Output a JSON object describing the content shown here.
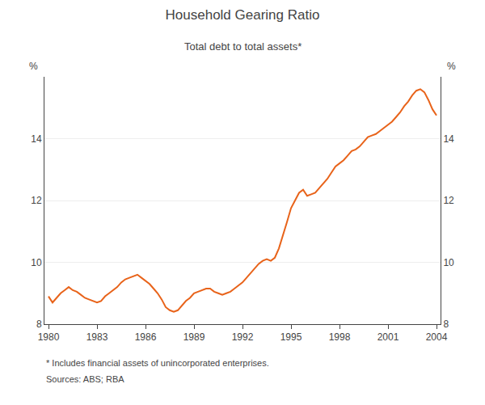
{
  "chart_data": {
    "type": "line",
    "title": "Household Gearing Ratio",
    "subtitle": "Total debt to total assets*",
    "ylabel": "%",
    "y2label": "%",
    "annotations": [
      "* Includes financial assets of unincorporated enterprises.",
      "Sources: ABS; RBA"
    ],
    "color": "#E8631A",
    "grid": true,
    "xlim": [
      1979.75,
      2004.25
    ],
    "xticks": [
      1980,
      1983,
      1986,
      1989,
      1992,
      1995,
      1998,
      2001,
      2004
    ],
    "ylim": [
      8,
      16
    ],
    "yticks": [
      8,
      10,
      12,
      14
    ],
    "y2lim": [
      8,
      16
    ],
    "y2ticks": [
      8,
      10,
      12,
      14
    ],
    "x": [
      1980.0,
      1980.25,
      1980.5,
      1980.75,
      1981.0,
      1981.25,
      1981.5,
      1981.75,
      1982.0,
      1982.25,
      1982.5,
      1982.75,
      1983.0,
      1983.25,
      1983.5,
      1983.75,
      1984.0,
      1984.25,
      1984.5,
      1984.75,
      1985.0,
      1985.25,
      1985.5,
      1985.75,
      1986.0,
      1986.25,
      1986.5,
      1986.75,
      1987.0,
      1987.25,
      1987.5,
      1987.75,
      1988.0,
      1988.25,
      1988.5,
      1988.75,
      1989.0,
      1989.25,
      1989.5,
      1989.75,
      1990.0,
      1990.25,
      1990.5,
      1990.75,
      1991.0,
      1991.25,
      1991.5,
      1991.75,
      1992.0,
      1992.25,
      1992.5,
      1992.75,
      1993.0,
      1993.25,
      1993.5,
      1993.75,
      1994.0,
      1994.25,
      1994.5,
      1994.75,
      1995.0,
      1995.25,
      1995.5,
      1995.75,
      1996.0,
      1996.25,
      1996.5,
      1996.75,
      1997.0,
      1997.25,
      1997.5,
      1997.75,
      1998.0,
      1998.25,
      1998.5,
      1998.75,
      1999.0,
      1999.25,
      1999.5,
      1999.75,
      2000.0,
      2000.25,
      2000.5,
      2000.75,
      2001.0,
      2001.25,
      2001.5,
      2001.75,
      2002.0,
      2002.25,
      2002.5,
      2002.75,
      2003.0,
      2003.25,
      2003.5,
      2003.75,
      2004.0
    ],
    "values": [
      8.9,
      8.7,
      8.85,
      9.0,
      9.1,
      9.2,
      9.1,
      9.05,
      8.95,
      8.85,
      8.8,
      8.75,
      8.7,
      8.75,
      8.9,
      9.0,
      9.1,
      9.2,
      9.35,
      9.45,
      9.5,
      9.55,
      9.6,
      9.5,
      9.4,
      9.3,
      9.15,
      9.0,
      8.8,
      8.55,
      8.45,
      8.4,
      8.45,
      8.6,
      8.75,
      8.85,
      9.0,
      9.05,
      9.1,
      9.15,
      9.15,
      9.05,
      9.0,
      8.95,
      9.0,
      9.05,
      9.15,
      9.25,
      9.35,
      9.5,
      9.65,
      9.8,
      9.95,
      10.05,
      10.1,
      10.05,
      10.15,
      10.45,
      10.85,
      11.3,
      11.75,
      12.0,
      12.25,
      12.35,
      12.15,
      12.2,
      12.25,
      12.4,
      12.55,
      12.7,
      12.9,
      13.1,
      13.2,
      13.3,
      13.45,
      13.6,
      13.65,
      13.75,
      13.9,
      14.05,
      14.1,
      14.15,
      14.25,
      14.35,
      14.45,
      14.55,
      14.7,
      14.85,
      15.05,
      15.2,
      15.4,
      15.55,
      15.6,
      15.5,
      15.25,
      14.95,
      14.75
    ]
  }
}
